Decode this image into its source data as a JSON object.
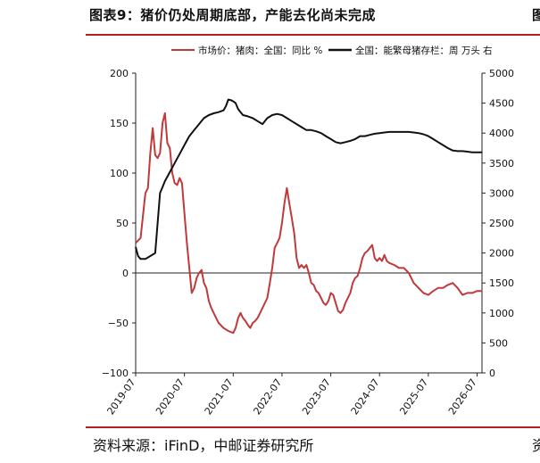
{
  "header": {
    "title": "图表9：猪价仍处周期底部，产能去化尚未完成",
    "title_right_fragment": "图"
  },
  "footer": {
    "source": "资料来源：iFinD，中邮证券研究所",
    "source_right_fragment": "资"
  },
  "colors": {
    "price_series": "#c0393b",
    "inventory_series": "#111111",
    "accent_rule": "#b22222"
  },
  "chart_data": {
    "type": "line",
    "title": "",
    "x_tick_labels": [
      "2019-07",
      "2020-07",
      "2021-07",
      "2022-07",
      "2023-07",
      "2024-07",
      "2025-07",
      "2026-07"
    ],
    "y_left": {
      "ticks": [
        -100,
        -50,
        0,
        50,
        100,
        150,
        200
      ],
      "ylim": [
        -100,
        200
      ]
    },
    "y_right": {
      "ticks": [
        0,
        500,
        1000,
        1500,
        2000,
        2500,
        3000,
        3500,
        4000,
        4500,
        5000
      ],
      "ylim": [
        0,
        5000
      ]
    },
    "series": [
      {
        "name": "市场价：猪肉：全国：同比  %",
        "axis": "left",
        "color": "#c0393b",
        "x": [
          2019.5,
          2019.6,
          2019.7,
          2019.75,
          2019.8,
          2019.85,
          2019.9,
          2019.95,
          2020.0,
          2020.05,
          2020.1,
          2020.15,
          2020.2,
          2020.25,
          2020.3,
          2020.35,
          2020.4,
          2020.45,
          2020.5,
          2020.55,
          2020.6,
          2020.65,
          2020.7,
          2020.75,
          2020.8,
          2020.85,
          2020.9,
          2020.95,
          2021.0,
          2021.05,
          2021.1,
          2021.15,
          2021.2,
          2021.3,
          2021.4,
          2021.5,
          2021.55,
          2021.6,
          2021.65,
          2021.7,
          2021.75,
          2021.8,
          2021.85,
          2021.9,
          2021.95,
          2022.0,
          2022.1,
          2022.2,
          2022.25,
          2022.3,
          2022.35,
          2022.4,
          2022.45,
          2022.5,
          2022.55,
          2022.6,
          2022.65,
          2022.7,
          2022.75,
          2022.8,
          2022.85,
          2022.9,
          2022.95,
          2023.0,
          2023.05,
          2023.1,
          2023.15,
          2023.2,
          2023.25,
          2023.3,
          2023.35,
          2023.4,
          2023.45,
          2023.5,
          2023.55,
          2023.6,
          2023.65,
          2023.7,
          2023.75,
          2023.8,
          2023.85,
          2023.9,
          2023.95,
          2024.0,
          2024.05,
          2024.1,
          2024.15,
          2024.2,
          2024.25,
          2024.3,
          2024.35,
          2024.4,
          2024.45,
          2024.5,
          2024.55,
          2024.6,
          2024.65,
          2024.7,
          2024.8,
          2024.9,
          2025.0,
          2025.1,
          2025.2,
          2025.3,
          2025.4,
          2025.5,
          2025.55,
          2025.6,
          2025.7,
          2025.8,
          2025.9,
          2026.0,
          2026.1,
          2026.2,
          2026.3,
          2026.4,
          2026.5,
          2026.6
        ],
        "values": [
          30,
          35,
          80,
          85,
          120,
          145,
          118,
          115,
          120,
          150,
          160,
          130,
          125,
          100,
          90,
          88,
          95,
          90,
          60,
          30,
          5,
          -20,
          -15,
          -5,
          0,
          3,
          -10,
          -15,
          -28,
          -35,
          -40,
          -45,
          -50,
          -55,
          -58,
          -60,
          -55,
          -45,
          -40,
          -45,
          -48,
          -52,
          -55,
          -50,
          -48,
          -45,
          -35,
          -25,
          -10,
          5,
          25,
          30,
          35,
          50,
          70,
          85,
          70,
          55,
          40,
          15,
          5,
          8,
          5,
          8,
          0,
          -10,
          -12,
          -18,
          -20,
          -25,
          -30,
          -32,
          -28,
          -20,
          -22,
          -30,
          -38,
          -40,
          -37,
          -30,
          -25,
          -20,
          -10,
          -5,
          -3,
          5,
          15,
          20,
          22,
          25,
          28,
          15,
          12,
          15,
          12,
          18,
          12,
          10,
          8,
          5,
          5,
          0,
          -10,
          -15,
          -20,
          -22,
          -20,
          -18,
          -15,
          -15,
          -12,
          -10,
          -15,
          -22,
          -20,
          -20,
          -18,
          -18
        ]
      },
      {
        "name": "全国：能繁母猪存栏：周  万头",
        "axis": "right",
        "color": "#111111",
        "x": [
          2019.5,
          2019.55,
          2019.6,
          2019.7,
          2019.8,
          2019.9,
          2020.0,
          2020.05,
          2020.1,
          2020.2,
          2020.3,
          2020.4,
          2020.5,
          2020.6,
          2020.7,
          2020.8,
          2020.9,
          2021.0,
          2021.1,
          2021.2,
          2021.3,
          2021.35,
          2021.4,
          2021.45,
          2021.5,
          2021.55,
          2021.6,
          2021.65,
          2021.7,
          2021.8,
          2021.9,
          2022.0,
          2022.1,
          2022.2,
          2022.3,
          2022.4,
          2022.5,
          2022.6,
          2022.7,
          2022.8,
          2022.9,
          2023.0,
          2023.1,
          2023.2,
          2023.3,
          2023.4,
          2023.5,
          2023.6,
          2023.7,
          2023.8,
          2023.9,
          2024.0,
          2024.1,
          2024.2,
          2024.3,
          2024.4,
          2024.5,
          2024.6,
          2024.7,
          2024.8,
          2024.9,
          2025.0,
          2025.1,
          2025.2,
          2025.3,
          2025.4,
          2025.5,
          2025.6,
          2025.7,
          2025.8,
          2025.9,
          2026.0,
          2026.1,
          2026.2,
          2026.3,
          2026.4,
          2026.5,
          2026.6
        ],
        "values": [
          2100,
          1950,
          1900,
          1900,
          1950,
          2000,
          3000,
          3100,
          3200,
          3350,
          3500,
          3650,
          3800,
          3950,
          4050,
          4150,
          4250,
          4300,
          4330,
          4350,
          4380,
          4450,
          4560,
          4550,
          4530,
          4500,
          4400,
          4350,
          4300,
          4280,
          4250,
          4200,
          4150,
          4250,
          4300,
          4320,
          4300,
          4250,
          4200,
          4150,
          4100,
          4050,
          4050,
          4030,
          4000,
          3950,
          3900,
          3850,
          3830,
          3850,
          3870,
          3900,
          3950,
          3950,
          3970,
          3990,
          4000,
          4010,
          4020,
          4020,
          4020,
          4020,
          4020,
          4010,
          4000,
          3980,
          3950,
          3900,
          3850,
          3800,
          3750,
          3710,
          3700,
          3700,
          3690,
          3680,
          3680,
          3680
        ]
      }
    ]
  }
}
